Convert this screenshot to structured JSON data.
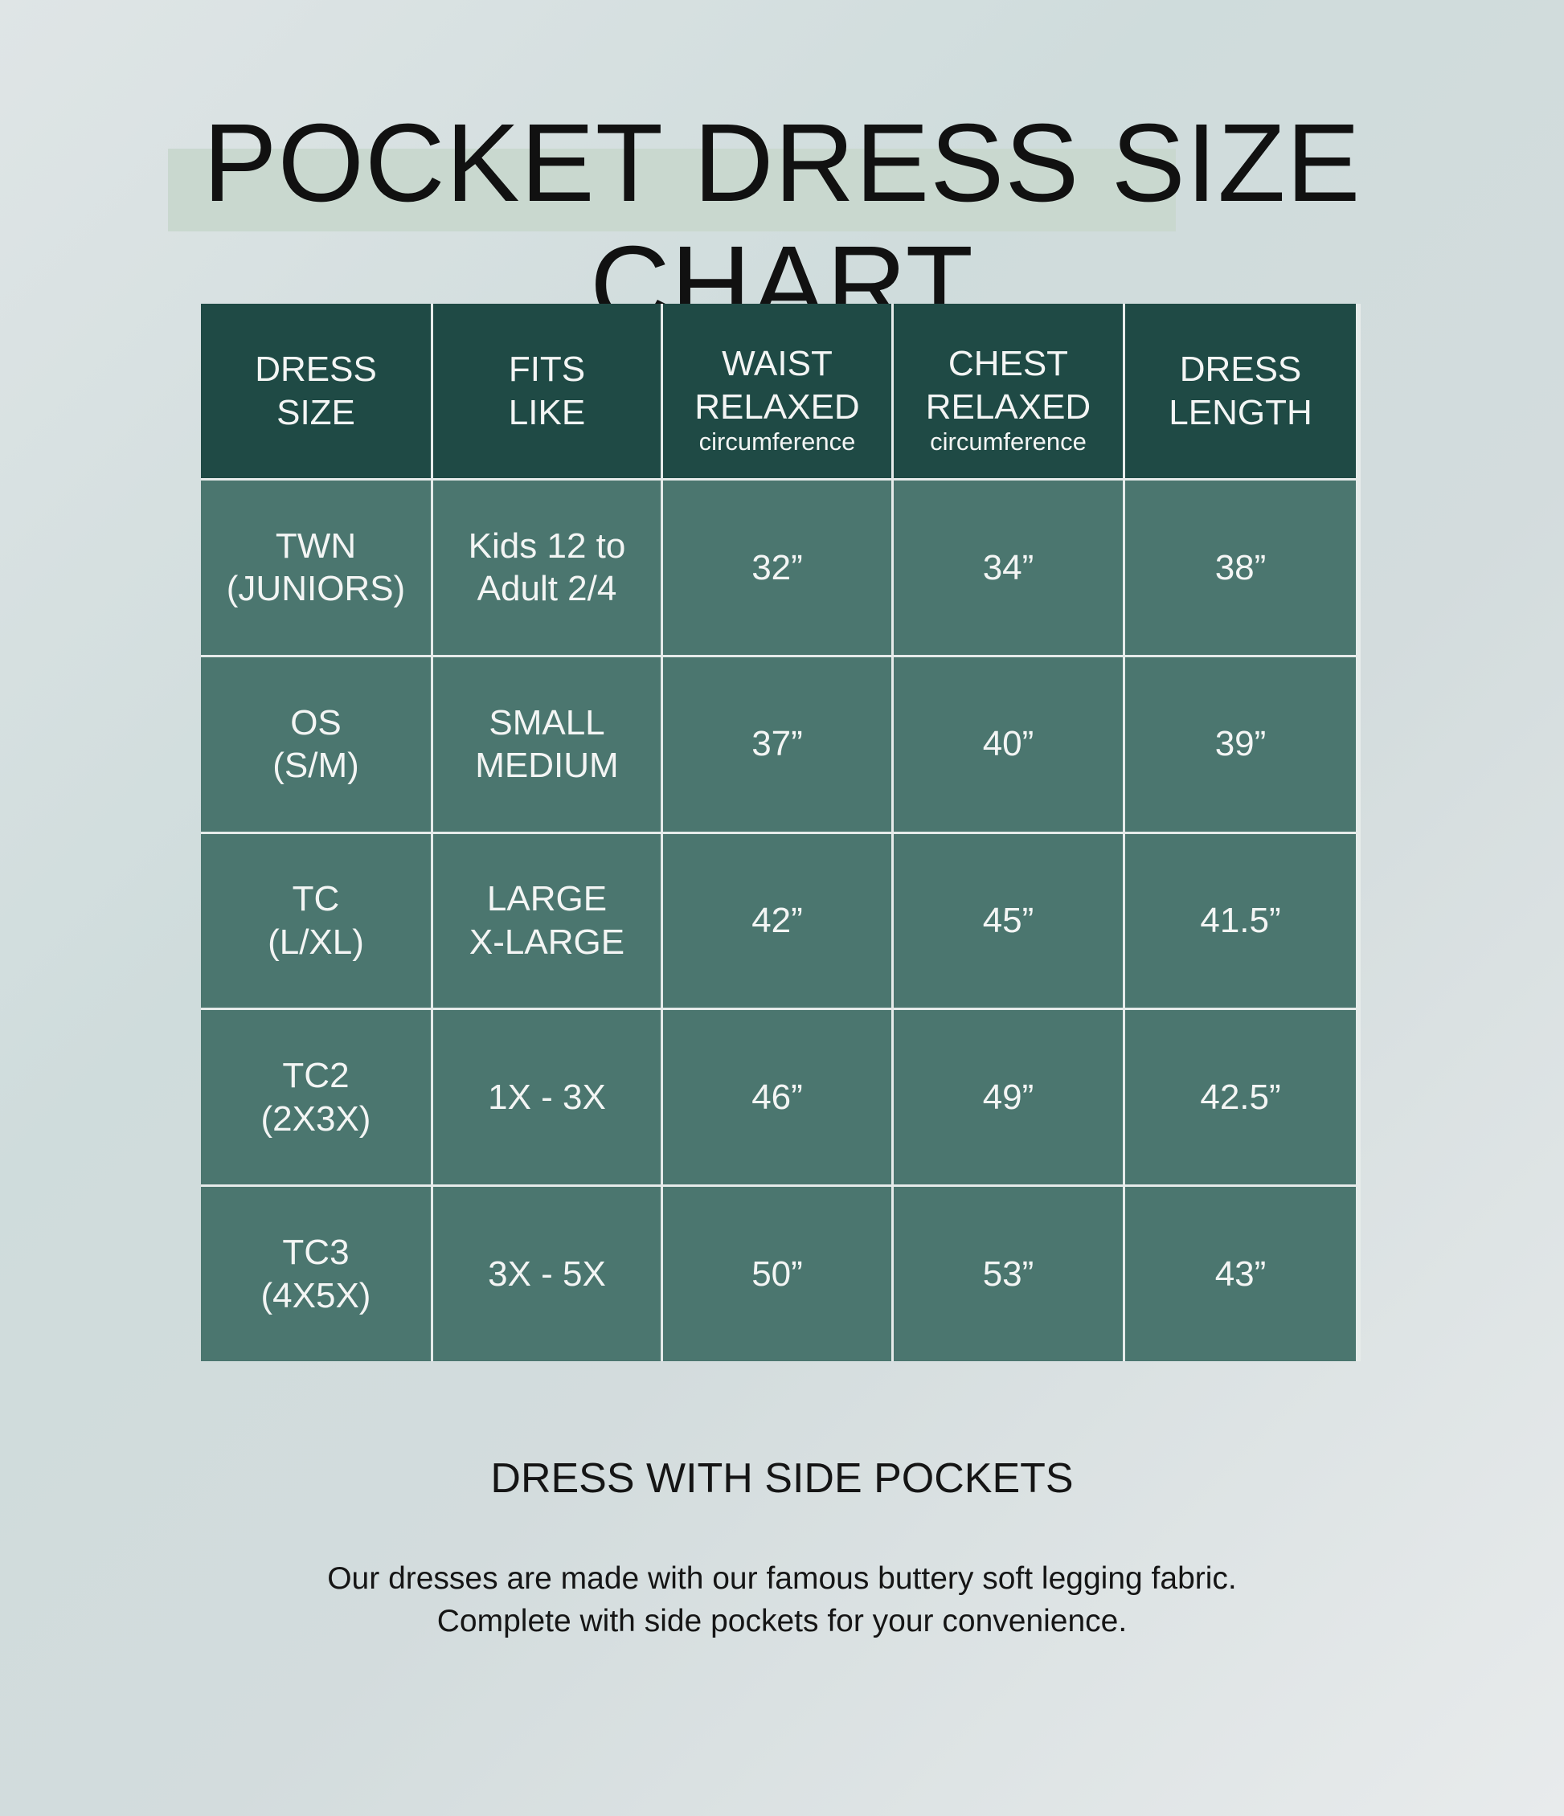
{
  "title": "POCKET DRESS SIZE CHART",
  "colors": {
    "header_bg": "#1f4a45",
    "cell_bg": "#4b766f",
    "highlight": "#c9d8cf"
  },
  "table": {
    "headers": [
      {
        "label": "DRESS\nSIZE",
        "sub": ""
      },
      {
        "label": "FITS\nLIKE",
        "sub": ""
      },
      {
        "label": "WAIST\nRELAXED",
        "sub": "circumference"
      },
      {
        "label": "CHEST\nRELAXED",
        "sub": "circumference"
      },
      {
        "label": "DRESS\nLENGTH",
        "sub": ""
      }
    ],
    "rows": [
      [
        "TWN\n(JUNIORS)",
        "Kids 12 to\nAdult 2/4",
        "32”",
        "34”",
        "38”"
      ],
      [
        "OS\n(S/M)",
        "SMALL\nMEDIUM",
        "37”",
        "40”",
        "39”"
      ],
      [
        "TC\n(L/XL)",
        "LARGE\nX-LARGE",
        "42”",
        "45”",
        "41.5”"
      ],
      [
        "TC2\n(2X3X)",
        "1X - 3X",
        "46”",
        "49”",
        "42.5”"
      ],
      [
        "TC3\n(4X5X)",
        "3X - 5X",
        "50”",
        "53”",
        "43”"
      ]
    ]
  },
  "subtitle": "DRESS WITH SIDE POCKETS",
  "description": [
    "Our dresses are made with our famous buttery soft legging fabric.",
    "Complete with side pockets for your convenience."
  ]
}
